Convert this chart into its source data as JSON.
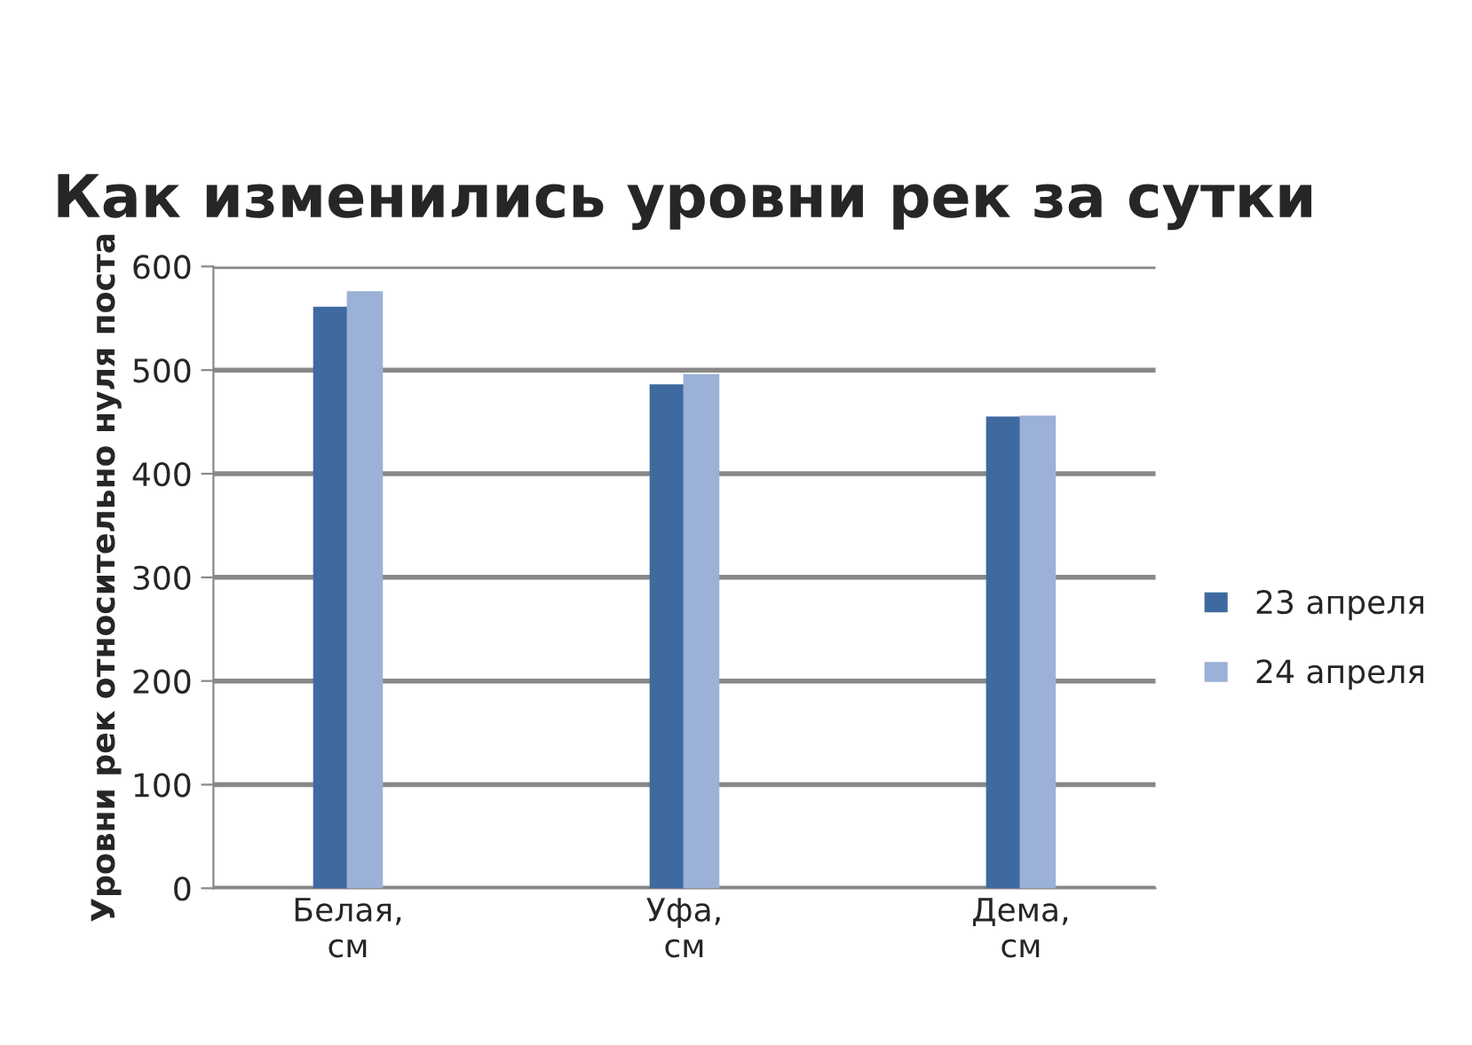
{
  "chart_data": {
    "type": "bar",
    "title": "Как изменились уровни рек за сутки",
    "ylabel": "Уровни рек относительно нуля поста",
    "categories": [
      "Белая,\nсм",
      "Уфа,\nсм",
      "Дема,\nсм"
    ],
    "series": [
      {
        "name": "23 апреля",
        "color": "#3f6aa0",
        "values": [
          560,
          485,
          454
        ]
      },
      {
        "name": "24 апреля",
        "color": "#9bb1d8",
        "values": [
          575,
          495,
          455
        ]
      }
    ],
    "ylim": [
      0,
      600
    ],
    "yticks": [
      0,
      100,
      200,
      300,
      400,
      500,
      600
    ],
    "grid": "y",
    "legend": "right"
  }
}
